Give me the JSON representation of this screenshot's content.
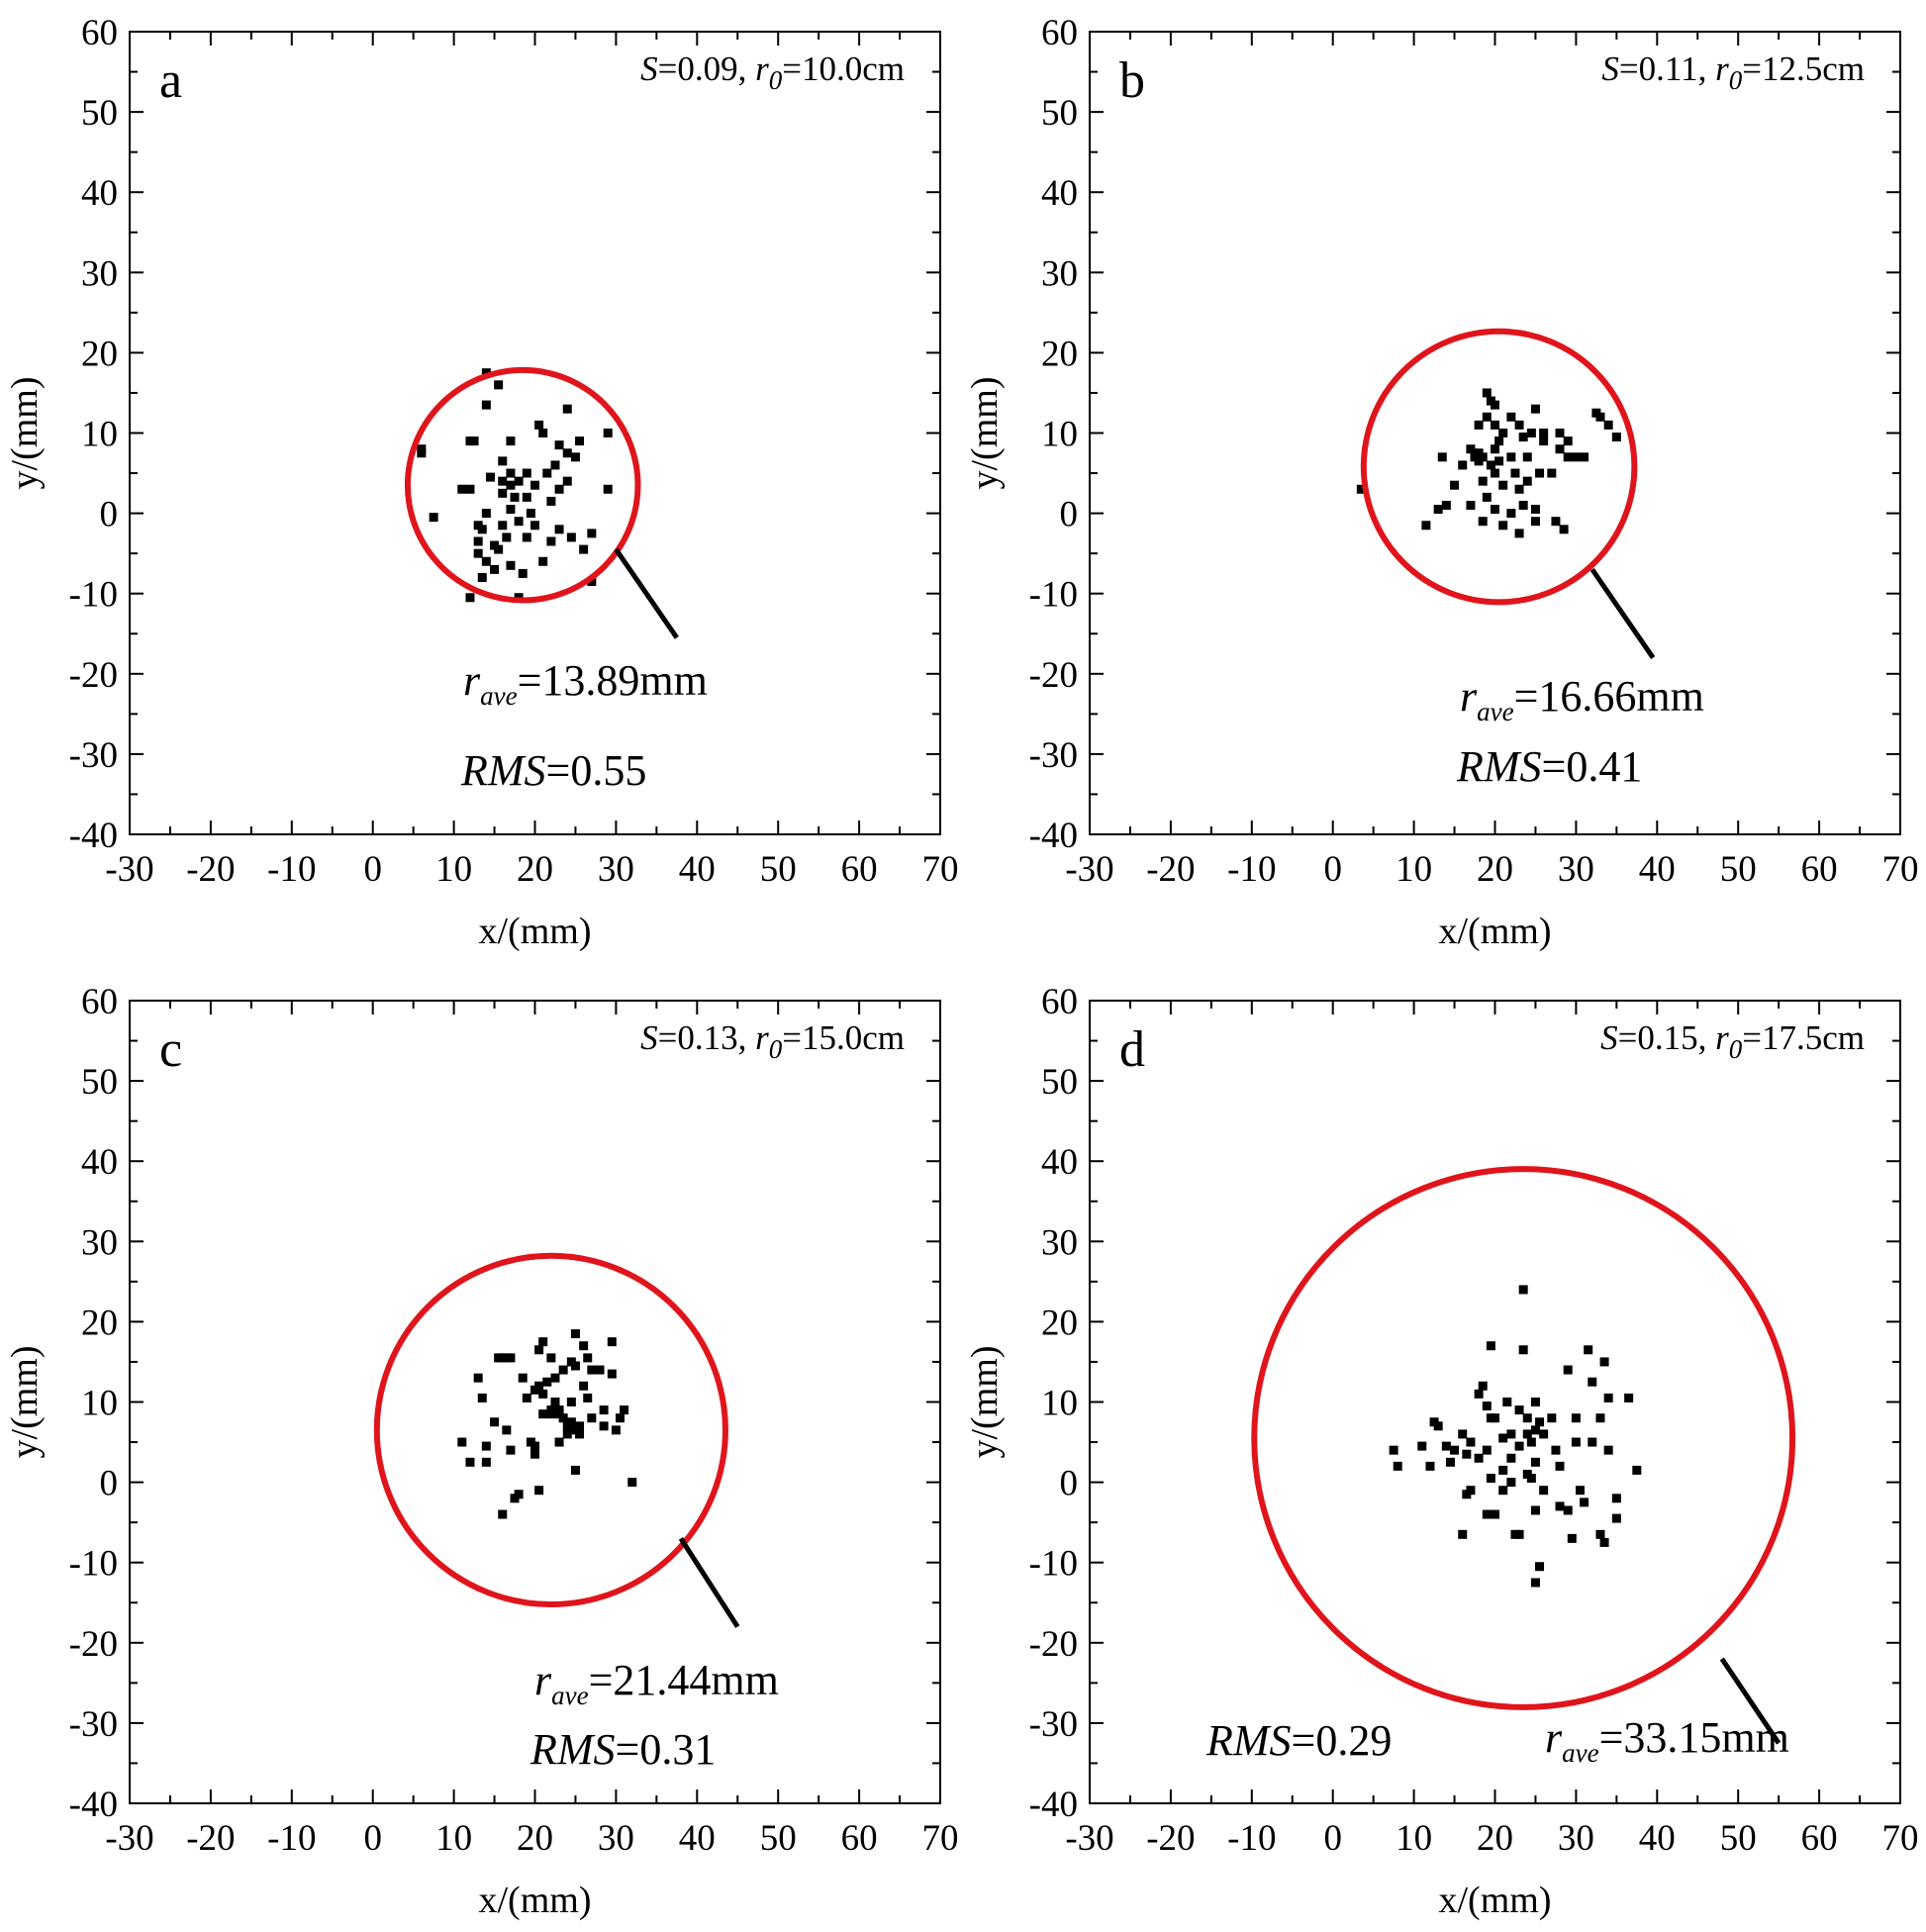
{
  "colors": {
    "circle": "#e0141b",
    "points": "#000000",
    "axes": "#000000",
    "background": "#ffffff"
  },
  "chart_data": [
    {
      "type": "scatter",
      "panel": "a",
      "params": {
        "S_label": "S",
        "S_value": "=0.09, ",
        "r0_label": "r",
        "r0_sub": "0",
        "r0_value": "=10.0cm"
      },
      "xlabel": "x/(mm)",
      "ylabel": "y/(mm)",
      "xlim": [
        -30,
        70
      ],
      "ylim": [
        -40,
        60
      ],
      "xticks": [
        -30,
        -20,
        -10,
        0,
        10,
        20,
        30,
        40,
        50,
        60,
        70
      ],
      "yticks": [
        -40,
        -30,
        -20,
        -10,
        0,
        10,
        20,
        30,
        40,
        50,
        60
      ],
      "circle": {
        "cx": 18.5,
        "cy": 3.5,
        "r": 14.2
      },
      "pointer": {
        "x1": 30,
        "y1": -4.5,
        "x2": 37.5,
        "y2": -15.5
      },
      "rave": {
        "label": "r",
        "sub": "ave",
        "value": "=13.89mm"
      },
      "rms": {
        "label": "RMS",
        "value": "=0.55"
      },
      "points": [
        [
          6,
          8
        ],
        [
          6,
          7.5
        ],
        [
          7.5,
          -0.5
        ],
        [
          11,
          3
        ],
        [
          12,
          3
        ],
        [
          12,
          9
        ],
        [
          12.5,
          9
        ],
        [
          12,
          -10.5
        ],
        [
          13,
          -1.5
        ],
        [
          13,
          -3.5
        ],
        [
          13,
          -5
        ],
        [
          13.5,
          -2
        ],
        [
          13.5,
          -8
        ],
        [
          14,
          13.5
        ],
        [
          14,
          17.5
        ],
        [
          14,
          0
        ],
        [
          14,
          -6
        ],
        [
          14.5,
          4.5
        ],
        [
          15,
          -4
        ],
        [
          15,
          -7
        ],
        [
          15.5,
          16
        ],
        [
          15.5,
          -4.5
        ],
        [
          16,
          6.5
        ],
        [
          16,
          4
        ],
        [
          16,
          2.5
        ],
        [
          16,
          -1.5
        ],
        [
          16.5,
          -3
        ],
        [
          17,
          5
        ],
        [
          17,
          3.5
        ],
        [
          17,
          0.5
        ],
        [
          17,
          -6.5
        ],
        [
          17,
          9
        ],
        [
          17.5,
          2
        ],
        [
          18,
          4
        ],
        [
          18,
          -1
        ],
        [
          18,
          -10.5
        ],
        [
          18.5,
          -7.5
        ],
        [
          19,
          5
        ],
        [
          19,
          2
        ],
        [
          19,
          -3
        ],
        [
          19.5,
          0
        ],
        [
          20,
          -1.5
        ],
        [
          20,
          3.5
        ],
        [
          20.5,
          11
        ],
        [
          21,
          10
        ],
        [
          21,
          -6
        ],
        [
          21.5,
          5
        ],
        [
          22,
          -3.5
        ],
        [
          22,
          1.5
        ],
        [
          22.5,
          6
        ],
        [
          23,
          8.5
        ],
        [
          23,
          3
        ],
        [
          23,
          -2
        ],
        [
          24,
          7.5
        ],
        [
          24,
          13
        ],
        [
          24,
          4
        ],
        [
          24.5,
          -3
        ],
        [
          25,
          7
        ],
        [
          25.5,
          9
        ],
        [
          26,
          -4.5
        ],
        [
          27,
          -2.5
        ],
        [
          27,
          -8.5
        ],
        [
          29,
          10
        ],
        [
          29,
          3
        ]
      ]
    },
    {
      "type": "scatter",
      "panel": "b",
      "params": {
        "S_label": "S",
        "S_value": "=0.11, ",
        "r0_label": "r",
        "r0_sub": "0",
        "r0_value": "=12.5cm"
      },
      "xlabel": "x/(mm)",
      "ylabel": "y/(mm)",
      "xlim": [
        -30,
        70
      ],
      "ylim": [
        -40,
        60
      ],
      "xticks": [
        -30,
        -20,
        -10,
        0,
        10,
        20,
        30,
        40,
        50,
        60,
        70
      ],
      "yticks": [
        -40,
        -30,
        -20,
        -10,
        0,
        10,
        20,
        30,
        40,
        50,
        60
      ],
      "circle": {
        "cx": 20.5,
        "cy": 5.8,
        "r": 16.7
      },
      "pointer": {
        "x1": 32,
        "y1": -7,
        "x2": 39.5,
        "y2": -18
      },
      "rave": {
        "label": "r",
        "sub": "ave",
        "value": "=16.66mm"
      },
      "rms": {
        "label": "RMS",
        "value": "=0.41"
      },
      "points": [
        [
          3.5,
          3
        ],
        [
          11.5,
          -1.5
        ],
        [
          13,
          0.5
        ],
        [
          13.5,
          7
        ],
        [
          14,
          1
        ],
        [
          15,
          3.5
        ],
        [
          16,
          6
        ],
        [
          17,
          8
        ],
        [
          17,
          1
        ],
        [
          17.5,
          7.5
        ],
        [
          17.5,
          7
        ],
        [
          18,
          7.5
        ],
        [
          18,
          6.5
        ],
        [
          18,
          11
        ],
        [
          18.5,
          7
        ],
        [
          18.5,
          4
        ],
        [
          18.5,
          -1
        ],
        [
          19,
          15
        ],
        [
          19,
          12
        ],
        [
          19,
          2
        ],
        [
          19.5,
          14
        ],
        [
          19.5,
          6
        ],
        [
          20,
          13.5
        ],
        [
          20,
          11
        ],
        [
          20,
          8
        ],
        [
          20,
          5
        ],
        [
          20,
          0.5
        ],
        [
          20.5,
          9
        ],
        [
          20.5,
          6.5
        ],
        [
          21,
          10
        ],
        [
          21,
          3.5
        ],
        [
          21,
          -1.5
        ],
        [
          22,
          12
        ],
        [
          22,
          7
        ],
        [
          22,
          0
        ],
        [
          22.5,
          5
        ],
        [
          23,
          11
        ],
        [
          23,
          3
        ],
        [
          23,
          -2.5
        ],
        [
          23.5,
          9.5
        ],
        [
          23.5,
          1
        ],
        [
          24,
          7
        ],
        [
          24,
          4
        ],
        [
          24.5,
          10
        ],
        [
          25,
          13
        ],
        [
          25,
          0.5
        ],
        [
          25,
          -1
        ],
        [
          25.5,
          5
        ],
        [
          26,
          9
        ],
        [
          26,
          10
        ],
        [
          27,
          5
        ],
        [
          27.5,
          -1
        ],
        [
          28,
          10
        ],
        [
          28,
          8
        ],
        [
          28.5,
          -2
        ],
        [
          29,
          9
        ],
        [
          29,
          7
        ],
        [
          30,
          7
        ],
        [
          31,
          7
        ],
        [
          32.5,
          12.5
        ],
        [
          33,
          12
        ],
        [
          34,
          11
        ],
        [
          35,
          9.5
        ]
      ]
    },
    {
      "type": "scatter",
      "panel": "c",
      "params": {
        "S_label": "S",
        "S_value": "=0.13, ",
        "r0_label": "r",
        "r0_sub": "0",
        "r0_value": "=15.0cm"
      },
      "xlabel": "x/(mm)",
      "ylabel": "y/(mm)",
      "xlim": [
        -30,
        70
      ],
      "ylim": [
        -40,
        60
      ],
      "xticks": [
        -30,
        -20,
        -10,
        0,
        10,
        20,
        30,
        40,
        50,
        60,
        70
      ],
      "yticks": [
        -40,
        -30,
        -20,
        -10,
        0,
        10,
        20,
        30,
        40,
        50,
        60
      ],
      "circle": {
        "cx": 22,
        "cy": 6.5,
        "r": 21.5
      },
      "pointer": {
        "x1": 38,
        "y1": -7,
        "x2": 45,
        "y2": -18
      },
      "rave": {
        "label": "r",
        "sub": "ave",
        "value": "=21.44mm"
      },
      "rms": {
        "label": "RMS",
        "value": "=0.31"
      },
      "points": [
        [
          11,
          5
        ],
        [
          12,
          2.5
        ],
        [
          13,
          13
        ],
        [
          13.5,
          10.5
        ],
        [
          14,
          2.5
        ],
        [
          14,
          4.5
        ],
        [
          15,
          7.5
        ],
        [
          15.5,
          15.5
        ],
        [
          16,
          15.5
        ],
        [
          16,
          -4
        ],
        [
          16.5,
          6.5
        ],
        [
          16.5,
          15.5
        ],
        [
          17,
          15.5
        ],
        [
          17.5,
          -2
        ],
        [
          17,
          4
        ],
        [
          18,
          -1.5
        ],
        [
          18.5,
          13
        ],
        [
          19,
          10.5
        ],
        [
          19.5,
          5
        ],
        [
          20,
          11.5
        ],
        [
          20,
          4.5
        ],
        [
          20,
          3.5
        ],
        [
          20.5,
          16.5
        ],
        [
          20.5,
          12
        ],
        [
          20.5,
          -1
        ],
        [
          21,
          17.5
        ],
        [
          21,
          11
        ],
        [
          21,
          8.5
        ],
        [
          21.5,
          12.5
        ],
        [
          22,
          15.5
        ],
        [
          22,
          9
        ],
        [
          22,
          8.5
        ],
        [
          22.5,
          13
        ],
        [
          22.5,
          10
        ],
        [
          23,
          9
        ],
        [
          23,
          8.5
        ],
        [
          23,
          5
        ],
        [
          23.5,
          14
        ],
        [
          23.5,
          8
        ],
        [
          24,
          7
        ],
        [
          24,
          6
        ],
        [
          24.5,
          15
        ],
        [
          24.5,
          10
        ],
        [
          24.5,
          7.5
        ],
        [
          25,
          18.5
        ],
        [
          25,
          14.5
        ],
        [
          25,
          6.5
        ],
        [
          25,
          1.5
        ],
        [
          25.5,
          7
        ],
        [
          25.5,
          6
        ],
        [
          26,
          17
        ],
        [
          26,
          12
        ],
        [
          26.5,
          15.5
        ],
        [
          26.5,
          10.5
        ],
        [
          27,
          14
        ],
        [
          27,
          8
        ],
        [
          28,
          14
        ],
        [
          28.5,
          9
        ],
        [
          28.5,
          7
        ],
        [
          29.5,
          17.5
        ],
        [
          29.5,
          13.5
        ],
        [
          30,
          6.5
        ],
        [
          30.5,
          8
        ],
        [
          31,
          9
        ],
        [
          32,
          0
        ]
      ]
    },
    {
      "type": "scatter",
      "panel": "d",
      "params": {
        "S_label": "S",
        "S_value": "=0.15, ",
        "r0_label": "r",
        "r0_sub": "0",
        "r0_value": "=17.5cm"
      },
      "xlabel": "x/(mm)",
      "ylabel": "y/(mm)",
      "xlim": [
        -30,
        70
      ],
      "ylim": [
        -40,
        60
      ],
      "xticks": [
        -30,
        -20,
        -10,
        0,
        10,
        20,
        30,
        40,
        50,
        60,
        70
      ],
      "yticks": [
        -40,
        -30,
        -20,
        -10,
        0,
        10,
        20,
        30,
        40,
        50,
        60
      ],
      "circle": {
        "cx": 23.5,
        "cy": 5.5,
        "r": 33.2
      },
      "pointer": {
        "x1": 48,
        "y1": -22,
        "x2": 55,
        "y2": -32.5
      },
      "rave": {
        "label": "r",
        "sub": "ave",
        "value": "=33.15mm"
      },
      "rms": {
        "label": "RMS",
        "value": "=0.29"
      },
      "points": [
        [
          7.5,
          4
        ],
        [
          8,
          2
        ],
        [
          11,
          4.5
        ],
        [
          12,
          2
        ],
        [
          12.5,
          7.5
        ],
        [
          13,
          7
        ],
        [
          14,
          4.5
        ],
        [
          14.5,
          2.5
        ],
        [
          15,
          4
        ],
        [
          16,
          6
        ],
        [
          16,
          -6.5
        ],
        [
          16.5,
          3.5
        ],
        [
          16.5,
          -1.5
        ],
        [
          17,
          5
        ],
        [
          17,
          -1
        ],
        [
          18,
          11
        ],
        [
          18,
          3
        ],
        [
          18.5,
          12
        ],
        [
          19,
          9.5
        ],
        [
          19,
          4
        ],
        [
          19,
          -4
        ],
        [
          19.5,
          17
        ],
        [
          19.5,
          8
        ],
        [
          19.5,
          0.5
        ],
        [
          20,
          8
        ],
        [
          20,
          -4
        ],
        [
          21,
          5.5
        ],
        [
          21,
          1.5
        ],
        [
          21,
          -1
        ],
        [
          21.5,
          10
        ],
        [
          22,
          6
        ],
        [
          22,
          3
        ],
        [
          22,
          0
        ],
        [
          22.5,
          -6.5
        ],
        [
          23,
          9
        ],
        [
          23,
          4.5
        ],
        [
          23,
          -6.5
        ],
        [
          23.5,
          24
        ],
        [
          23.5,
          16.5
        ],
        [
          24,
          8
        ],
        [
          24,
          6
        ],
        [
          24,
          1
        ],
        [
          24.5,
          5
        ],
        [
          24.5,
          0.5
        ],
        [
          25,
          10
        ],
        [
          25,
          6.5
        ],
        [
          25,
          2.5
        ],
        [
          25,
          -3.5
        ],
        [
          25.5,
          7.5
        ],
        [
          25.5,
          -10.5
        ],
        [
          25,
          -12.5
        ],
        [
          26,
          6
        ],
        [
          26,
          -1
        ],
        [
          27,
          8
        ],
        [
          27.5,
          4
        ],
        [
          28,
          2
        ],
        [
          28,
          -3
        ],
        [
          29,
          14
        ],
        [
          29,
          -3.5
        ],
        [
          29.5,
          -7
        ],
        [
          30,
          8
        ],
        [
          30,
          5
        ],
        [
          30.5,
          -1
        ],
        [
          31,
          -2.5
        ],
        [
          31.5,
          16.5
        ],
        [
          32,
          12.5
        ],
        [
          32,
          5
        ],
        [
          33,
          8
        ],
        [
          33,
          -6.5
        ],
        [
          33.5,
          15
        ],
        [
          33.5,
          -7.5
        ],
        [
          34,
          10.5
        ],
        [
          34,
          4
        ],
        [
          35,
          -2
        ],
        [
          35,
          -4.5
        ],
        [
          36.5,
          10.5
        ],
        [
          37.5,
          1.5
        ]
      ]
    }
  ]
}
